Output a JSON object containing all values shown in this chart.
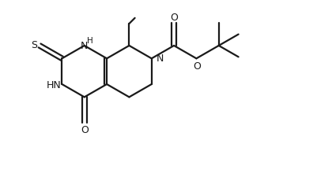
{
  "bg_color": "#ffffff",
  "line_color": "#1a1a1a",
  "lw": 1.6,
  "figsize": [
    4.01,
    2.26
  ],
  "dpi": 100,
  "xlim": [
    0,
    10
  ],
  "ylim": [
    0,
    5.63
  ]
}
